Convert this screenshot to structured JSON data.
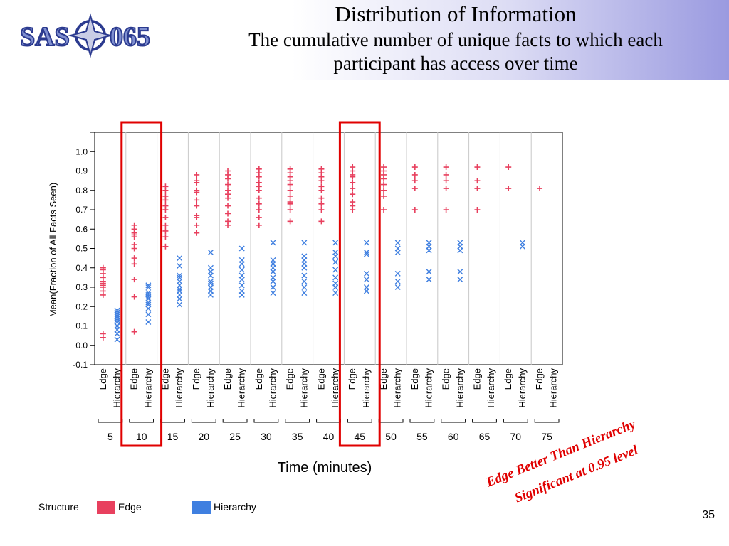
{
  "slide": {
    "title": "Distribution of Information",
    "subtitle": "The cumulative number of unique facts to which each participant has access over time",
    "annotation_line1": "Edge Better Than Hierarchy",
    "annotation_line2": "Significant at 0.95 level",
    "page_number": "35",
    "logo_text_left": "SAS",
    "logo_text_right": "065",
    "colors": {
      "edge": "#e8405e",
      "hierarchy": "#3f7fe0",
      "highlight": "#e00000"
    }
  },
  "legend": {
    "label": "Structure",
    "items": [
      {
        "name": "Edge",
        "color": "#e8405e"
      },
      {
        "name": "Hierarchy",
        "color": "#3f7fe0"
      }
    ]
  },
  "chart_data": {
    "type": "scatter",
    "ylabel": "Mean(Fraction of All Facts Seen)",
    "xlabel": "Time (minutes)",
    "ylim": [
      -0.1,
      1.1
    ],
    "yticks": [
      "1.0",
      "0.9",
      "0.8",
      "0.7",
      "0.6",
      "0.5",
      "0.4",
      "0.3",
      "0.2",
      "0.1",
      "0.0",
      "-0.1"
    ],
    "yticks_values": [
      1.0,
      0.9,
      0.8,
      0.7,
      0.6,
      0.5,
      0.4,
      0.3,
      0.2,
      0.1,
      0.0,
      -0.1
    ],
    "categories": [
      "5",
      "10",
      "15",
      "20",
      "25",
      "30",
      "35",
      "40",
      "45",
      "50",
      "55",
      "60",
      "65",
      "70",
      "75"
    ],
    "subcategories": [
      "Edge",
      "Hierarchy"
    ],
    "highlighted_categories": [
      "10",
      "45"
    ],
    "series": [
      {
        "name": "Edge",
        "marker": "+",
        "values": [
          [
            0.04,
            0.06,
            0.26,
            0.28,
            0.3,
            0.31,
            0.32,
            0.33,
            0.35,
            0.37,
            0.39,
            0.4
          ],
          [
            0.07,
            0.25,
            0.34,
            0.42,
            0.45,
            0.5,
            0.52,
            0.56,
            0.57,
            0.58,
            0.6,
            0.62
          ],
          [
            0.51,
            0.56,
            0.59,
            0.62,
            0.66,
            0.7,
            0.72,
            0.75,
            0.77,
            0.8,
            0.82
          ],
          [
            0.58,
            0.62,
            0.66,
            0.67,
            0.72,
            0.75,
            0.79,
            0.8,
            0.84,
            0.85,
            0.88
          ],
          [
            0.62,
            0.64,
            0.68,
            0.72,
            0.76,
            0.78,
            0.8,
            0.83,
            0.86,
            0.88,
            0.9
          ],
          [
            0.62,
            0.66,
            0.7,
            0.73,
            0.76,
            0.8,
            0.82,
            0.84,
            0.87,
            0.89,
            0.91
          ],
          [
            0.64,
            0.7,
            0.73,
            0.74,
            0.77,
            0.8,
            0.83,
            0.85,
            0.87,
            0.89,
            0.91
          ],
          [
            0.64,
            0.7,
            0.73,
            0.76,
            0.8,
            0.82,
            0.85,
            0.87,
            0.89,
            0.91
          ],
          [
            0.7,
            0.72,
            0.74,
            0.78,
            0.81,
            0.84,
            0.87,
            0.88,
            0.9,
            0.92
          ],
          [
            0.7,
            0.77,
            0.8,
            0.83,
            0.86,
            0.88,
            0.9,
            0.92
          ],
          [
            0.7,
            0.81,
            0.85,
            0.88,
            0.92
          ],
          [
            0.7,
            0.81,
            0.85,
            0.88,
            0.92
          ],
          [
            0.7,
            0.81,
            0.85,
            0.92
          ],
          [
            0.81,
            0.92
          ],
          [
            0.81
          ]
        ]
      },
      {
        "name": "Hierarchy",
        "marker": "x",
        "values": [
          [
            0.03,
            0.06,
            0.08,
            0.1,
            0.12,
            0.13,
            0.14,
            0.15,
            0.16,
            0.17,
            0.18
          ],
          [
            0.12,
            0.16,
            0.19,
            0.21,
            0.22,
            0.24,
            0.25,
            0.26,
            0.27,
            0.3,
            0.31
          ],
          [
            0.21,
            0.24,
            0.26,
            0.28,
            0.29,
            0.31,
            0.33,
            0.35,
            0.36,
            0.41,
            0.45
          ],
          [
            0.26,
            0.28,
            0.3,
            0.32,
            0.33,
            0.36,
            0.38,
            0.4,
            0.48
          ],
          [
            0.26,
            0.28,
            0.31,
            0.34,
            0.36,
            0.39,
            0.42,
            0.44,
            0.5
          ],
          [
            0.27,
            0.3,
            0.33,
            0.35,
            0.38,
            0.4,
            0.42,
            0.44,
            0.53
          ],
          [
            0.27,
            0.3,
            0.33,
            0.36,
            0.4,
            0.42,
            0.44,
            0.46,
            0.53
          ],
          [
            0.27,
            0.3,
            0.32,
            0.35,
            0.39,
            0.43,
            0.46,
            0.48,
            0.53
          ],
          [
            0.28,
            0.3,
            0.34,
            0.37,
            0.47,
            0.48,
            0.53
          ],
          [
            0.3,
            0.33,
            0.37,
            0.48,
            0.5,
            0.53
          ],
          [
            0.34,
            0.38,
            0.49,
            0.51,
            0.53
          ],
          [
            0.34,
            0.38,
            0.49,
            0.51,
            0.53
          ],
          [
            0.51,
            0.53
          ]
        ],
        "categories_index": [
          0,
          1,
          2,
          3,
          4,
          5,
          6,
          7,
          8,
          9,
          10,
          11,
          13
        ]
      }
    ]
  }
}
